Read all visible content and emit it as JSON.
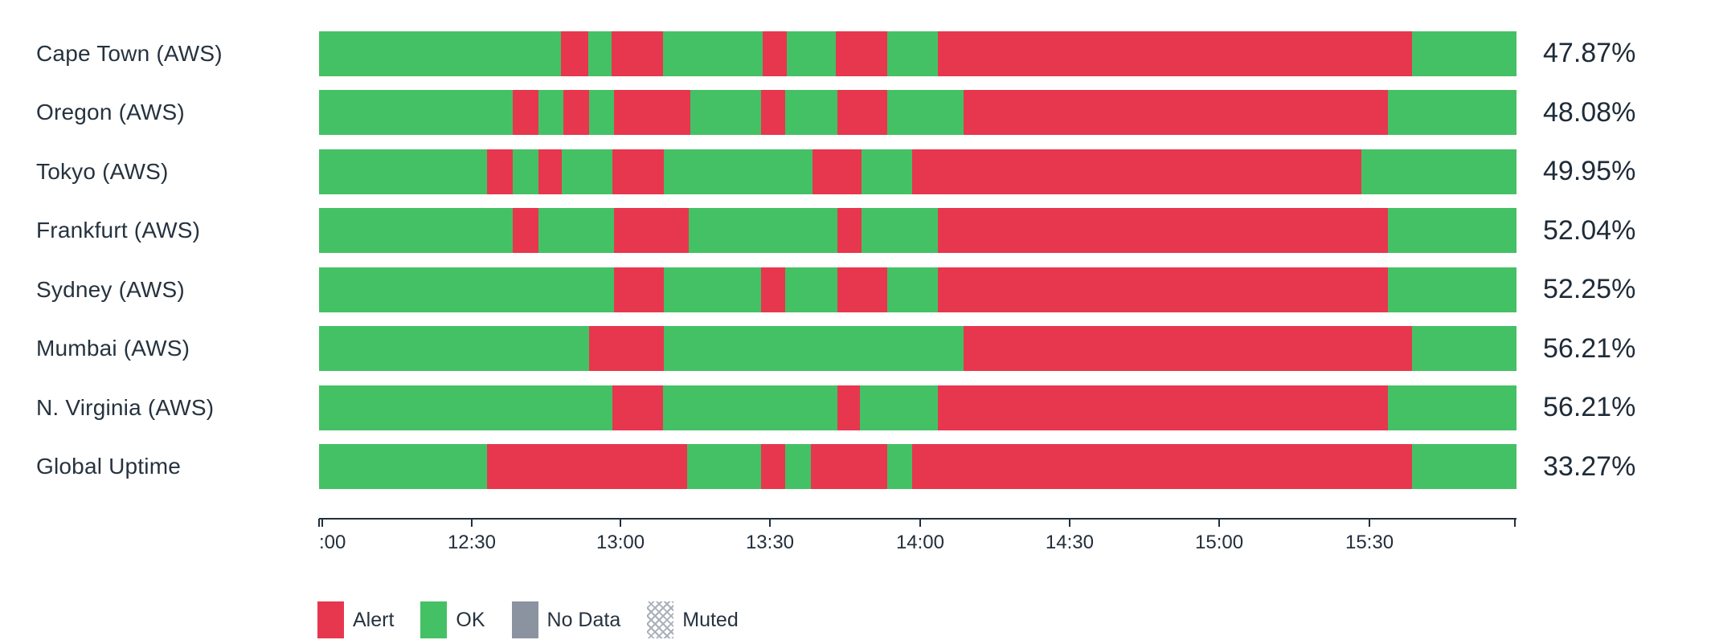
{
  "colors": {
    "ok": "#45C165",
    "alert": "#E7374E",
    "no_data": "#8B93A0",
    "text": "#26333F",
    "axis": "#222E3C"
  },
  "chart_data": {
    "type": "status-timeline (horizontal state bars, stacked by time)",
    "title": "",
    "x_axis": {
      "start": "12:00",
      "end": "16:00",
      "tick_labels": [
        ":00",
        "12:30",
        "13:00",
        "13:30",
        "14:00",
        "14:30",
        "15:00",
        "15:30"
      ],
      "grid": false
    },
    "legend_position": "bottom-left",
    "states": [
      "Alert",
      "OK",
      "No Data",
      "Muted"
    ],
    "rows": [
      {
        "label": "Cape Town (AWS)",
        "uptime": "47.87%",
        "segments": [
          [
            "ok",
            20.2
          ],
          [
            "alert",
            2.28
          ],
          [
            "ok",
            1.95
          ],
          [
            "alert",
            4.3
          ],
          [
            "ok",
            8.32
          ],
          [
            "alert",
            2.01
          ],
          [
            "ok",
            4.09
          ],
          [
            "alert",
            4.3
          ],
          [
            "ok",
            4.23
          ],
          [
            "alert",
            39.6
          ],
          [
            "ok",
            8.72
          ]
        ]
      },
      {
        "label": "Oregon (AWS)",
        "uptime": "48.08%",
        "segments": [
          [
            "ok",
            16.17
          ],
          [
            "alert",
            2.15
          ],
          [
            "ok",
            2.08
          ],
          [
            "alert",
            2.15
          ],
          [
            "ok",
            2.08
          ],
          [
            "alert",
            6.38
          ],
          [
            "ok",
            5.91
          ],
          [
            "alert",
            2.01
          ],
          [
            "ok",
            4.36
          ],
          [
            "alert",
            4.16
          ],
          [
            "ok",
            6.38
          ],
          [
            "alert",
            35.44
          ],
          [
            "ok",
            10.73
          ]
        ]
      },
      {
        "label": "Tokyo (AWS)",
        "uptime": "49.95%",
        "segments": [
          [
            "ok",
            14.03
          ],
          [
            "alert",
            2.15
          ],
          [
            "ok",
            2.15
          ],
          [
            "alert",
            1.95
          ],
          [
            "ok",
            4.23
          ],
          [
            "alert",
            4.3
          ],
          [
            "ok",
            12.42
          ],
          [
            "alert",
            4.09
          ],
          [
            "ok",
            4.23
          ],
          [
            "alert",
            37.5
          ],
          [
            "ok",
            12.95
          ]
        ]
      },
      {
        "label": "Frankfurt (AWS)",
        "uptime": "52.04%",
        "segments": [
          [
            "ok",
            16.17
          ],
          [
            "alert",
            2.15
          ],
          [
            "ok",
            6.31
          ],
          [
            "alert",
            6.24
          ],
          [
            "ok",
            12.42
          ],
          [
            "alert",
            2.01
          ],
          [
            "ok",
            6.38
          ],
          [
            "alert",
            37.58
          ],
          [
            "ok",
            10.74
          ]
        ]
      },
      {
        "label": "Sydney (AWS)",
        "uptime": "52.25%",
        "segments": [
          [
            "ok",
            24.64
          ],
          [
            "alert",
            4.16
          ],
          [
            "ok",
            8.12
          ],
          [
            "alert",
            2.01
          ],
          [
            "ok",
            4.36
          ],
          [
            "alert",
            4.16
          ],
          [
            "ok",
            4.23
          ],
          [
            "alert",
            37.58
          ],
          [
            "ok",
            10.74
          ]
        ]
      },
      {
        "label": "Mumbai (AWS)",
        "uptime": "56.21%",
        "segments": [
          [
            "ok",
            22.56
          ],
          [
            "alert",
            6.24
          ],
          [
            "ok",
            25.03
          ],
          [
            "alert",
            37.45
          ],
          [
            "ok",
            8.72
          ]
        ]
      },
      {
        "label": "N. Virginia (AWS)",
        "uptime": "56.21%",
        "segments": [
          [
            "ok",
            24.5
          ],
          [
            "alert",
            4.23
          ],
          [
            "ok",
            14.56
          ],
          [
            "alert",
            1.88
          ],
          [
            "ok",
            6.51
          ],
          [
            "alert",
            37.58
          ],
          [
            "ok",
            10.74
          ]
        ]
      },
      {
        "label": "Global Uptime",
        "uptime": "33.27%",
        "segments": [
          [
            "ok",
            14.03
          ],
          [
            "alert",
            16.71
          ],
          [
            "ok",
            6.17
          ],
          [
            "alert",
            2.01
          ],
          [
            "ok",
            2.15
          ],
          [
            "alert",
            6.38
          ],
          [
            "ok",
            2.08
          ],
          [
            "alert",
            41.75
          ],
          [
            "ok",
            8.72
          ]
        ]
      }
    ]
  },
  "axis": {
    "ticks": [
      {
        "pos": 0,
        "label": ""
      },
      {
        "pos": 0.27,
        "label": ":00",
        "align": "left"
      },
      {
        "pos": 12.75,
        "label": "12:30"
      },
      {
        "pos": 25.17,
        "label": "13:00"
      },
      {
        "pos": 37.65,
        "label": "13:30"
      },
      {
        "pos": 50.2,
        "label": "14:00"
      },
      {
        "pos": 62.68,
        "label": "14:30"
      },
      {
        "pos": 75.17,
        "label": "15:00"
      },
      {
        "pos": 87.72,
        "label": "15:30"
      },
      {
        "pos": 99.85,
        "label": ""
      }
    ]
  },
  "legend": {
    "items": [
      {
        "label": "Alert",
        "swatch": "alert"
      },
      {
        "label": "OK",
        "swatch": "ok"
      },
      {
        "label": "No Data",
        "swatch": "no_data"
      },
      {
        "label": "Muted",
        "swatch": "hatch"
      }
    ]
  }
}
